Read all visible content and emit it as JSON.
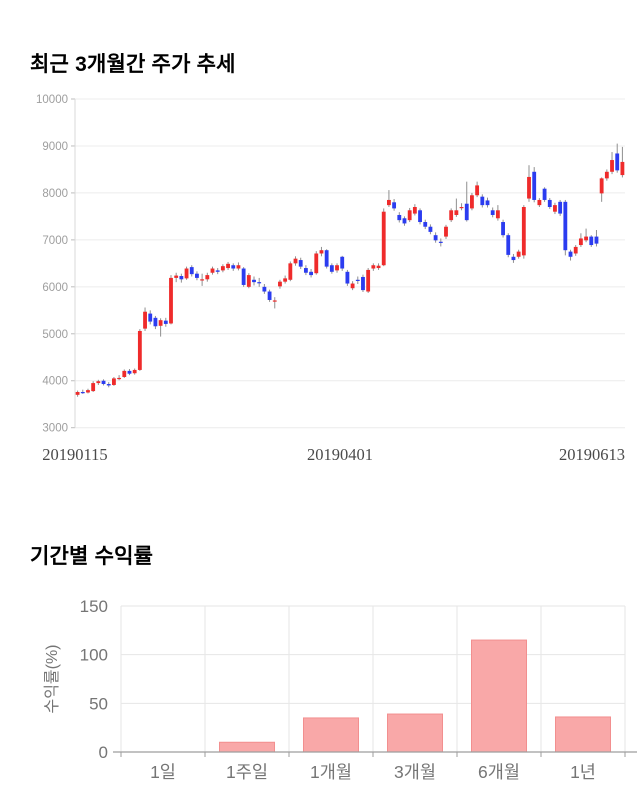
{
  "price_section": {
    "title": "최근 3개월간 주가 추세"
  },
  "returns_section": {
    "title": "기간별 수익률"
  },
  "chart_data": [
    {
      "type": "candlestick",
      "title": "최근 3개월간 주가 추세",
      "ylim": [
        3000,
        10000
      ],
      "y_ticks": [
        3000,
        4000,
        5000,
        6000,
        7000,
        8000,
        9000,
        10000
      ],
      "x_tick_labels": [
        "20190115",
        "20190401",
        "20190613"
      ],
      "grid": true,
      "up_color": "#ef2b2b",
      "down_color": "#2b3cf0",
      "wick_color": "#8f8f8f",
      "grid_color": "#ececec",
      "axis_color": "#d9d9d9",
      "y_label_color": "#9e9e9e",
      "x_label_color": "#4a4a4a",
      "ohlc_format": [
        "open",
        "high",
        "low",
        "close"
      ],
      "ohlc": [
        [
          3700,
          3790,
          3660,
          3760
        ],
        [
          3760,
          3810,
          3720,
          3750
        ],
        [
          3750,
          3830,
          3730,
          3800
        ],
        [
          3780,
          3990,
          3760,
          3950
        ],
        [
          3950,
          4020,
          3910,
          3990
        ],
        [
          4000,
          4030,
          3900,
          3930
        ],
        [
          3930,
          3970,
          3860,
          3900
        ],
        [
          3910,
          4080,
          3890,
          4050
        ],
        [
          4050,
          4120,
          4010,
          4060
        ],
        [
          4080,
          4240,
          4060,
          4210
        ],
        [
          4210,
          4250,
          4120,
          4150
        ],
        [
          4160,
          4260,
          4130,
          4230
        ],
        [
          4230,
          5100,
          4210,
          5060
        ],
        [
          5110,
          5560,
          5060,
          5470
        ],
        [
          5430,
          5500,
          5200,
          5260
        ],
        [
          5340,
          5380,
          5100,
          5160
        ],
        [
          5170,
          5330,
          4940,
          5290
        ],
        [
          5280,
          5340,
          5150,
          5210
        ],
        [
          5220,
          6250,
          5200,
          6190
        ],
        [
          6190,
          6300,
          6100,
          6240
        ],
        [
          6230,
          6280,
          6090,
          6160
        ],
        [
          6180,
          6430,
          6150,
          6390
        ],
        [
          6420,
          6460,
          6220,
          6270
        ],
        [
          6280,
          6330,
          6140,
          6190
        ],
        [
          6150,
          6280,
          6020,
          6160
        ],
        [
          6160,
          6300,
          6110,
          6250
        ],
        [
          6300,
          6430,
          6260,
          6390
        ],
        [
          6350,
          6400,
          6270,
          6320
        ],
        [
          6350,
          6480,
          6310,
          6440
        ],
        [
          6400,
          6530,
          6360,
          6490
        ],
        [
          6460,
          6500,
          6340,
          6390
        ],
        [
          6390,
          6520,
          6350,
          6460
        ],
        [
          6390,
          6420,
          6000,
          6040
        ],
        [
          6000,
          6290,
          5970,
          6250
        ],
        [
          6150,
          6220,
          6030,
          6100
        ],
        [
          6100,
          6190,
          6000,
          6090
        ],
        [
          6000,
          6060,
          5850,
          5900
        ],
        [
          5900,
          5940,
          5680,
          5720
        ],
        [
          5700,
          5780,
          5540,
          5710
        ],
        [
          6010,
          6150,
          5960,
          6110
        ],
        [
          6110,
          6240,
          6070,
          6180
        ],
        [
          6150,
          6540,
          6120,
          6500
        ],
        [
          6500,
          6650,
          6450,
          6600
        ],
        [
          6570,
          6620,
          6380,
          6430
        ],
        [
          6400,
          6460,
          6250,
          6300
        ],
        [
          6320,
          6380,
          6200,
          6250
        ],
        [
          6290,
          6760,
          6260,
          6710
        ],
        [
          6710,
          6850,
          6650,
          6780
        ],
        [
          6780,
          6800,
          6390,
          6430
        ],
        [
          6460,
          6500,
          6280,
          6320
        ],
        [
          6350,
          6500,
          6300,
          6460
        ],
        [
          6640,
          6660,
          6340,
          6390
        ],
        [
          6320,
          6360,
          6020,
          6070
        ],
        [
          5970,
          6120,
          5930,
          6070
        ],
        [
          6150,
          6220,
          6060,
          6140
        ],
        [
          6210,
          6260,
          5890,
          5930
        ],
        [
          5900,
          6400,
          5870,
          6360
        ],
        [
          6390,
          6500,
          6340,
          6460
        ],
        [
          6400,
          6500,
          6360,
          6450
        ],
        [
          6460,
          7670,
          6440,
          7600
        ],
        [
          7740,
          8060,
          7700,
          7850
        ],
        [
          7800,
          7870,
          7620,
          7670
        ],
        [
          7530,
          7590,
          7370,
          7420
        ],
        [
          7460,
          7500,
          7300,
          7350
        ],
        [
          7420,
          7680,
          7380,
          7630
        ],
        [
          7560,
          7760,
          7520,
          7700
        ],
        [
          7630,
          7670,
          7330,
          7380
        ],
        [
          7380,
          7430,
          7230,
          7280
        ],
        [
          7280,
          7330,
          7120,
          7170
        ],
        [
          7100,
          7160,
          6940,
          6990
        ],
        [
          6960,
          7030,
          6860,
          6950
        ],
        [
          7070,
          7320,
          7020,
          7280
        ],
        [
          7420,
          7670,
          7380,
          7630
        ],
        [
          7530,
          7880,
          7490,
          7630
        ],
        [
          7700,
          7780,
          7630,
          7700
        ],
        [
          7770,
          8240,
          7390,
          7420
        ],
        [
          7670,
          8000,
          7630,
          7950
        ],
        [
          7950,
          8240,
          7910,
          8160
        ],
        [
          7920,
          7970,
          7690,
          7740
        ],
        [
          7840,
          7900,
          7690,
          7740
        ],
        [
          7630,
          7690,
          7480,
          7530
        ],
        [
          7460,
          7740,
          7410,
          7630
        ],
        [
          7380,
          7430,
          7050,
          7100
        ],
        [
          7100,
          7140,
          6630,
          6680
        ],
        [
          6640,
          6700,
          6510,
          6570
        ],
        [
          6640,
          6790,
          6600,
          6750
        ],
        [
          6670,
          7740,
          6600,
          7700
        ],
        [
          7880,
          8590,
          7810,
          8340
        ],
        [
          8450,
          8550,
          7800,
          7850
        ],
        [
          7740,
          7890,
          7700,
          7850
        ],
        [
          8090,
          8120,
          7810,
          7850
        ],
        [
          7850,
          7890,
          7660,
          7700
        ],
        [
          7600,
          7790,
          7550,
          7740
        ],
        [
          7810,
          7850,
          7510,
          7560
        ],
        [
          7810,
          7850,
          6670,
          6780
        ],
        [
          6750,
          6790,
          6560,
          6640
        ],
        [
          6710,
          6890,
          6660,
          6850
        ],
        [
          6890,
          7140,
          6850,
          7030
        ],
        [
          6990,
          7240,
          6950,
          7070
        ],
        [
          7070,
          7100,
          6850,
          6890
        ],
        [
          7070,
          7210,
          6860,
          6920
        ],
        [
          7990,
          8330,
          7810,
          8310
        ],
        [
          8310,
          8500,
          8260,
          8450
        ],
        [
          8450,
          8870,
          8400,
          8700
        ],
        [
          8840,
          9050,
          8430,
          8480
        ],
        [
          8380,
          8980,
          8330,
          8660
        ]
      ]
    },
    {
      "type": "bar",
      "title": "기간별 수익률",
      "categories": [
        "1일",
        "1주일",
        "1개월",
        "3개월",
        "6개월",
        "1년"
      ],
      "values": [
        0,
        10,
        35,
        39,
        115,
        36
      ],
      "ylabel": "수익률(%)",
      "xlabel": "",
      "ylim": [
        0,
        150
      ],
      "y_ticks": [
        0,
        50,
        100,
        150
      ],
      "grid": true,
      "legend": false,
      "bar_fill": "#f9a8a8",
      "bar_stroke": "#f28f8f",
      "grid_color": "#e6e6e6",
      "axis_color": "#9e9e9e",
      "label_color": "#757575"
    }
  ]
}
